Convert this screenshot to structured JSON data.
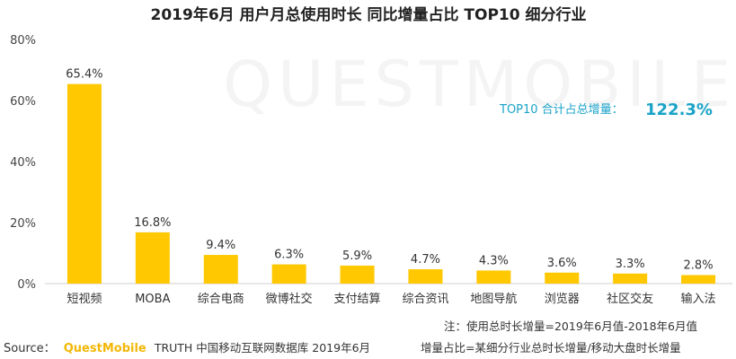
{
  "chart_data": {
    "type": "bar",
    "title": "2019年6月 用户月总使用时长 同比增量占比 TOP10 细分行业",
    "categories": [
      "短视频",
      "MOBA",
      "综合电商",
      "微博社交",
      "支付结算",
      "综合资讯",
      "地图导航",
      "浏览器",
      "社区交友",
      "输入法"
    ],
    "values": [
      65.4,
      16.8,
      9.4,
      6.3,
      5.9,
      4.7,
      4.3,
      3.6,
      3.3,
      2.8
    ],
    "value_labels": [
      "65.4%",
      "16.8%",
      "9.4%",
      "6.3%",
      "5.9%",
      "4.7%",
      "4.3%",
      "3.6%",
      "3.3%",
      "2.8%"
    ],
    "yticks": [
      "0%",
      "20%",
      "40%",
      "60%",
      "80%"
    ],
    "ylim": [
      0,
      80
    ],
    "grid": false,
    "bar_color": "#ffc800",
    "callout": {
      "label": "TOP10 合计占总增量：",
      "value": "122.3%"
    }
  },
  "watermark": "QUESTMOBILE",
  "notes": {
    "line1": "注：使用总时长增量=2019年6月值-2018年6月值",
    "line2": "增量占比=某细分行业总时长增量/移动大盘时长增量"
  },
  "source": {
    "label": "Source：",
    "brand": "QuestMobile",
    "rest": "TRUTH 中国移动互联网数据库 2019年6月"
  }
}
